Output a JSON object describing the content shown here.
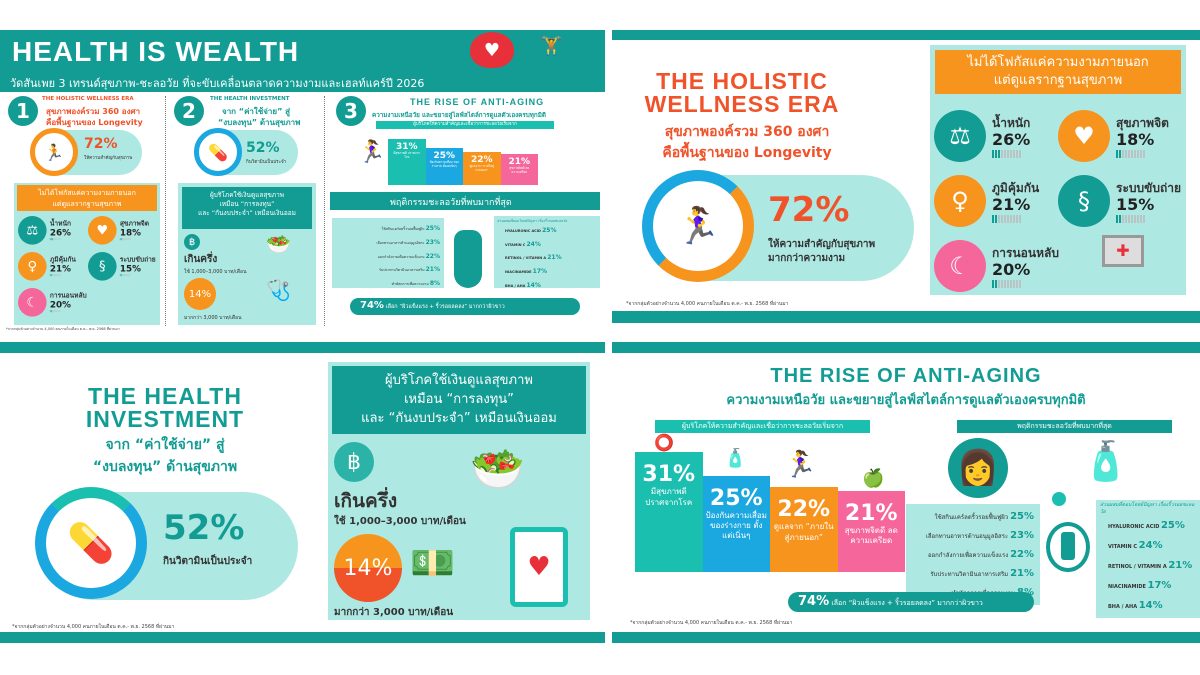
{
  "colors": {
    "teal": "#139c94",
    "aqua": "#aee8e2",
    "orange": "#f7941d",
    "red": "#f0522a",
    "blue": "#1ba7e0",
    "pink": "#f5679a"
  },
  "overview": {
    "title": "HEALTH IS WEALTH",
    "subtitle": "วัดสันเพย 3 เทรนด์สุขภาพ-ชะลอวัย ที่จะขับเคลื่อนตลาดความงามและเฮลท์แคร์ปี 2026",
    "numbers": [
      "1",
      "2",
      "3"
    ]
  },
  "footnote": "*จากกลุ่มตัวอย่างจำนวน 4,000 คนภายในเดือน ต.ค.- พ.ย. 2568 ที่ผ่านมา",
  "holistic": {
    "title_line1": "THE HOLISTIC",
    "title_line2": "WELLNESS ERA",
    "title_short": "THE HOLISTIC WELLNESS ERA",
    "sub_line1": "สุขภาพองค์รวม 360 องศา",
    "sub_line2": "คือพื้นฐานของ Longevity",
    "stat_value": "72%",
    "stat_line1": "ให้ความสำคัญกับสุขภาพ",
    "stat_line2": "มากกว่าความงาม",
    "box_header_line1": "ไม่ได้โฟกัสแค่ความงามภายนอก",
    "box_header_line2": "แต่ดูแลรากฐานสุขภาพ",
    "items": [
      {
        "label": "น้ำหนัก",
        "value": "26%",
        "percent": 26,
        "icon": "scale-icon",
        "color": "#139c94"
      },
      {
        "label": "สุขภาพจิต",
        "value": "18%",
        "percent": 18,
        "icon": "heart-icon",
        "color": "#f7941d"
      },
      {
        "label": "ภูมิคุ้มกัน",
        "value": "21%",
        "percent": 21,
        "icon": "person-icon",
        "color": "#f7941d"
      },
      {
        "label": "ระบบขับถ่าย",
        "value": "15%",
        "percent": 15,
        "icon": "intestine-icon",
        "color": "#139c94"
      },
      {
        "label": "การนอนหลับ",
        "value": "20%",
        "percent": 20,
        "icon": "sleep-icon",
        "color": "#f5679a"
      }
    ]
  },
  "investment": {
    "title_line1": "THE HEALTH",
    "title_line2": "INVESTMENT",
    "title_short": "THE HEALTH INVESTMENT",
    "sub_line1": "จาก “ค่าใช้จ่าย” สู่",
    "sub_line2": "“งบลงทุน” ด้านสุขภาพ",
    "stat_value": "52%",
    "stat_label": "กินวิตามินเป็นประจำ",
    "box_header_line1": "ผู้บริโภคใช้เงินดูแลสุขภาพ",
    "box_header_line2": "เหมือน “การลงทุน”",
    "box_header_line3": "และ “กันงบประจำ” เหมือนเงินออม",
    "baht_symbol": "฿",
    "half_label": "เกินครึ่ง",
    "half_detail": "ใช้ 1,000–3,000 บาท/เดือน",
    "high_value": "14%",
    "high_detail": "มากกว่า 3,000 บาท/เดือน"
  },
  "antiaging": {
    "title": "THE RISE OF ANTI-AGING",
    "subtitle": "ความงามเหนือวัย และขยายสู่ไลฟ์สไตล์การดูแลตัวเองครบทุกมิติ",
    "belief_header": "ผู้บริโภคให้ความสำคัญและเชื่อว่าการชะลอวัยเริ่มจาก",
    "behavior_header": "พฤติกรรมชะลอวัยที่พบมากที่สุด",
    "ingredient_header": "ส่วนผสมที่ตอบโจทย์ปัญหา เรื่องริ้วรอยชะลอวัย",
    "summary_value": "74%",
    "summary_text": "เลือก “ผิวแข็งแรง + ริ้วรอยลดลง” มากกว่าผิวขาว"
  },
  "chart_data": {
    "type": "bar",
    "categories": [
      "มีสุขภาพดี ปราศจากโรค",
      "ป้องกันความเสื่อม ของร่างกาย ตั้งแต่เนิ่นๆ",
      "ดูแลจาก “ภายในสู่ภายนอก”",
      "สุขภาพจิตดี ลดความเครียด"
    ],
    "values": [
      31,
      25,
      22,
      21
    ],
    "labels": [
      "31%",
      "25%",
      "22%",
      "21%"
    ],
    "bar_colors": [
      "#1bbfb0",
      "#1ba7e0",
      "#f7941d",
      "#f5679a"
    ]
  },
  "behaviors": [
    {
      "label": "ใช้สกินแคร์ลดริ้วรอยฟื้นฟูผิว",
      "value": "25%"
    },
    {
      "label": "เลือกทานอาหารต้านอนุมูลอิสระ",
      "value": "23%"
    },
    {
      "label": "ออกกำลังกายเพื่อความแข็งแรง",
      "value": "22%"
    },
    {
      "label": "รับประทานวิตามินอาหารเสริม",
      "value": "21%"
    },
    {
      "label": "ทำหัตถการเพื่อความงาม",
      "value": "8%"
    }
  ],
  "ingredients": [
    {
      "label": "HYALURONIC ACID",
      "value": "25%"
    },
    {
      "label": "VITAMIN C",
      "value": "24%"
    },
    {
      "label": "RETINOL / VITAMIN A",
      "value": "21%"
    },
    {
      "label": "NIACINAMIDE",
      "value": "17%"
    },
    {
      "label": "BHA / AHA",
      "value": "14%"
    }
  ]
}
